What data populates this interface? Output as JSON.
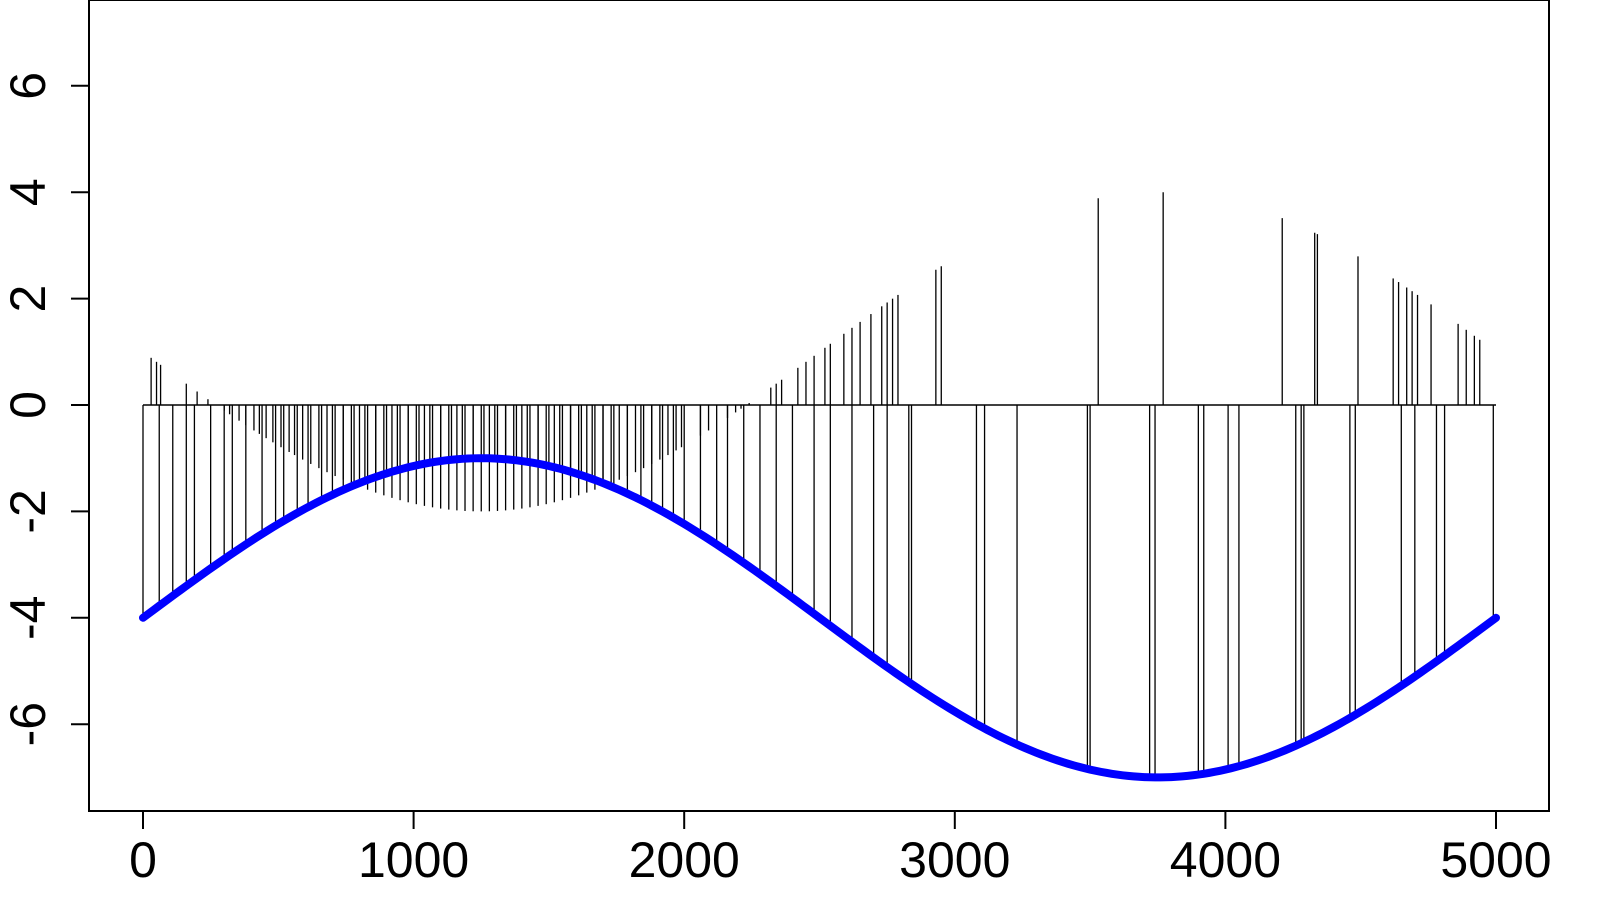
{
  "chart_data": {
    "type": "line",
    "title": "",
    "xlabel": "",
    "ylabel": "",
    "xlim": [
      0,
      5000
    ],
    "ylim": [
      -7.5,
      7.5
    ],
    "x_ticks": [
      0,
      1000,
      2000,
      3000,
      4000,
      5000
    ],
    "x_tick_labels": [
      "0",
      "1000",
      "2000",
      "3000",
      "4000",
      "5000"
    ],
    "y_ticks": [
      -6,
      -4,
      -2,
      0,
      2,
      4,
      6
    ],
    "y_tick_labels": [
      "-6",
      "-4",
      "-2",
      "0",
      "2",
      "4",
      "6"
    ],
    "grid": false,
    "legend": "none",
    "colors": {
      "curve": "#0000ff",
      "spikes": "#000000",
      "axes": "#000000"
    },
    "curve": {
      "function": "-4 + 3*sin(2*pi*x/5000)",
      "x": [
        0,
        250,
        500,
        750,
        1000,
        1250,
        1500,
        1750,
        2000,
        2250,
        2500,
        2750,
        3000,
        3250,
        3500,
        3750,
        4000,
        4250,
        4500,
        4750,
        5000
      ],
      "y": [
        -4.0,
        -3.07,
        -2.24,
        -1.57,
        -1.15,
        -1.0,
        -1.15,
        -1.57,
        -2.24,
        -3.07,
        -4.0,
        -4.93,
        -5.76,
        -6.43,
        -6.85,
        -7.0,
        -6.85,
        -6.43,
        -5.76,
        -4.93,
        -4.0
      ]
    },
    "baseline": {
      "y": 0,
      "x_range": [
        0,
        5000
      ]
    },
    "downward_spike_x": [
      0,
      60,
      110,
      160,
      190,
      250,
      300,
      330,
      380,
      440,
      490,
      520,
      570,
      610,
      660,
      700,
      740,
      780,
      820,
      860,
      900,
      940,
      980,
      1020,
      1060,
      1100,
      1140,
      1180,
      1220,
      1260,
      1300,
      1340,
      1380,
      1420,
      1460,
      1500,
      1540,
      1580,
      1620,
      1660,
      1700,
      1740,
      1790,
      1840,
      1880,
      1920,
      1960,
      2000,
      2060,
      2120,
      2160,
      2220,
      2280,
      2340,
      2400,
      2480,
      2540,
      2620,
      2700,
      2750,
      2830,
      2840,
      3080,
      3110,
      3230,
      3490,
      3500,
      3720,
      3740,
      3900,
      3920,
      4010,
      4050,
      4260,
      4280,
      4290,
      4460,
      4480,
      4650,
      4700,
      4780,
      4810,
      4990
    ],
    "upward_spike_x": [
      30,
      50,
      65,
      160,
      200,
      240,
      270,
      300,
      320,
      355,
      380,
      410,
      430,
      455,
      480,
      510,
      540,
      560,
      590,
      620,
      650,
      680,
      710,
      740,
      770,
      800,
      830,
      860,
      890,
      920,
      950,
      980,
      1010,
      1040,
      1070,
      1100,
      1130,
      1160,
      1190,
      1220,
      1250,
      1280,
      1310,
      1340,
      1370,
      1400,
      1430,
      1460,
      1490,
      1520,
      1550,
      1580,
      1610,
      1640,
      1670,
      1700,
      1730,
      1760,
      1790,
      1820,
      1850,
      1880,
      1910,
      1940,
      1970,
      1990,
      2060,
      2090,
      2160,
      2190,
      2210,
      2240,
      2320,
      2340,
      2360,
      2420,
      2450,
      2480,
      2520,
      2540,
      2590,
      2620,
      2650,
      2690,
      2730,
      2750,
      2770,
      2790,
      2930,
      2950,
      3530,
      3770,
      4210,
      4330,
      4340,
      4490,
      4620,
      4640,
      4670,
      4690,
      4710,
      4760,
      4860,
      4890,
      4920,
      4940
    ]
  }
}
